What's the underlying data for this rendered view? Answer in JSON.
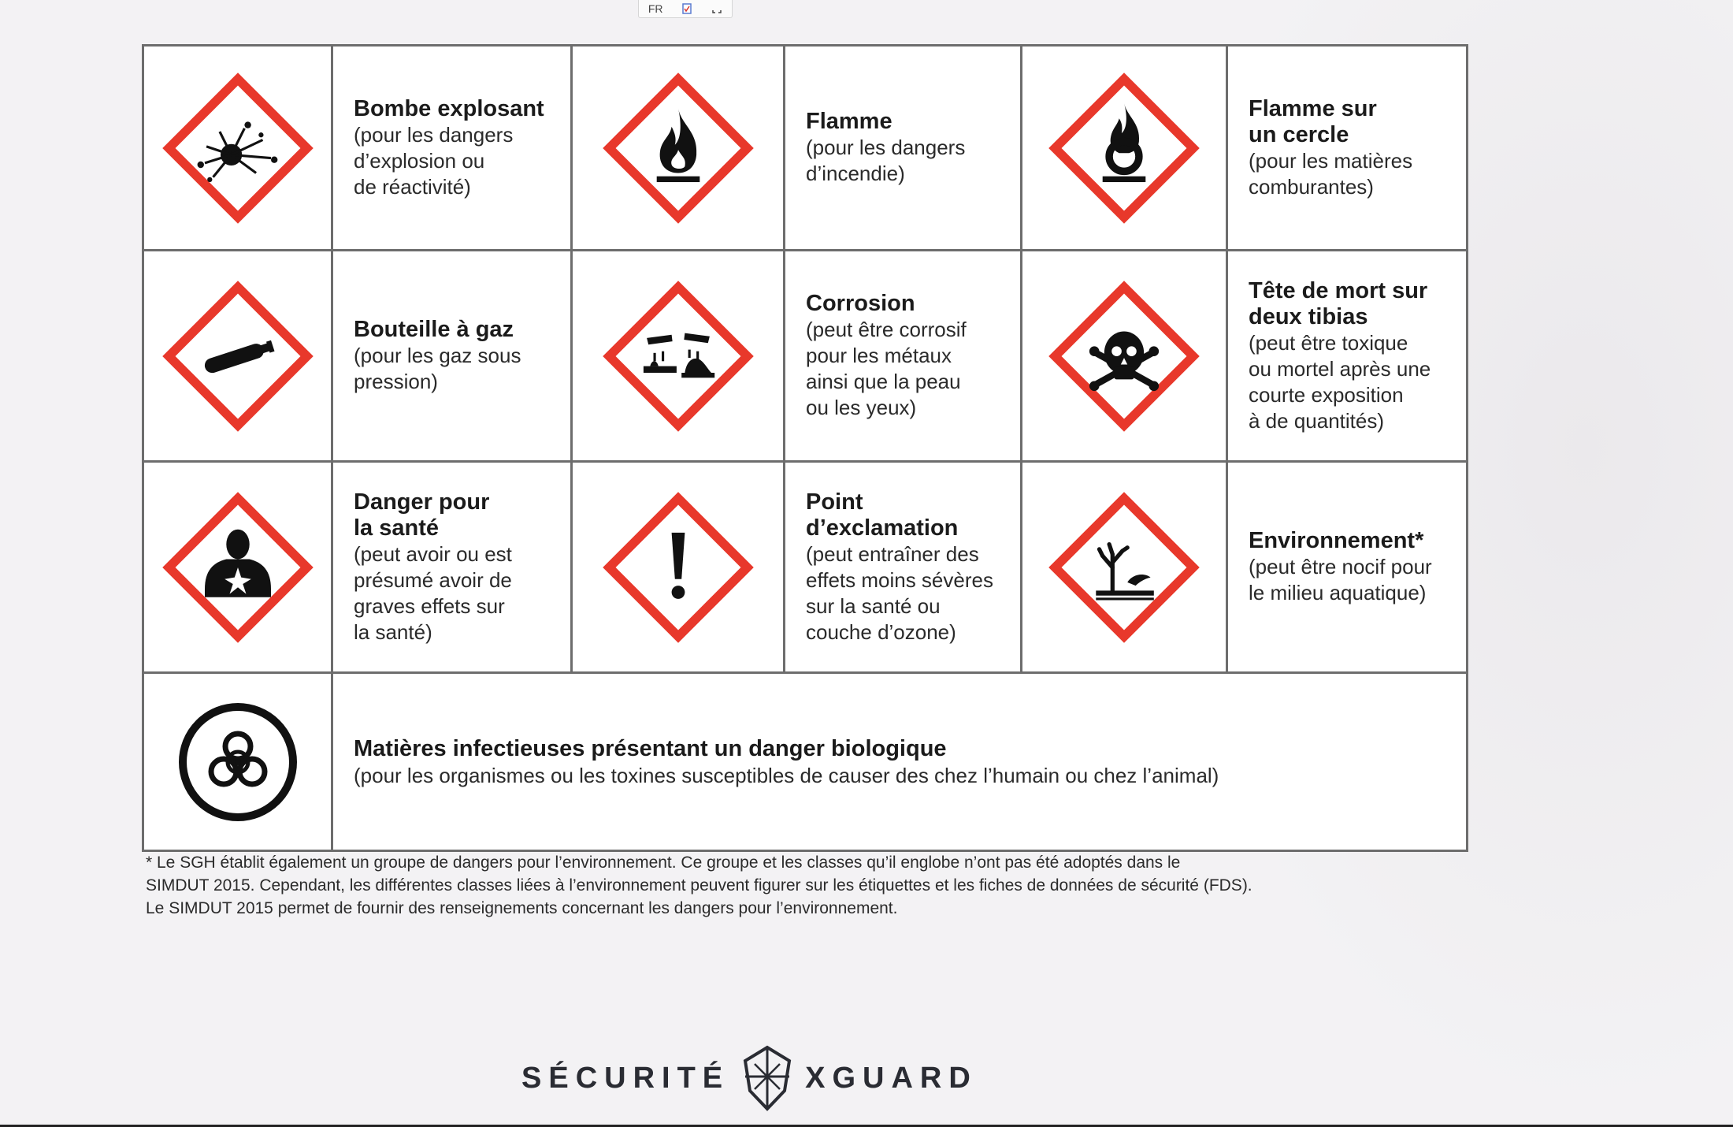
{
  "toolbar": {
    "lang": "FR"
  },
  "rows": [
    [
      {
        "icon": "exploding-bomb-icon",
        "title": "Bombe explosant",
        "desc": "(pour les dangers\nd’explosion ou\nde réactivité)"
      },
      {
        "icon": "flame-icon",
        "title": "Flamme",
        "desc": "(pour les dangers\nd’incendie)"
      },
      {
        "icon": "flame-over-circle-icon",
        "title": "Flamme sur\nun cercle",
        "desc": "(pour les matières\ncomburantes)"
      }
    ],
    [
      {
        "icon": "gas-cylinder-icon",
        "title": "Bouteille à gaz",
        "desc": "(pour les gaz sous\npression)"
      },
      {
        "icon": "corrosion-icon",
        "title": "Corrosion",
        "desc": "(peut être corrosif\npour les métaux\nainsi que la peau\nou les yeux)"
      },
      {
        "icon": "skull-crossbones-icon",
        "title": "Tête de mort sur\ndeux tibias",
        "desc": "(peut être toxique\nou mortel après une\ncourte exposition\nà de quantités)"
      }
    ],
    [
      {
        "icon": "health-hazard-icon",
        "title": "Danger pour\nla santé",
        "desc": "(peut avoir ou est\nprésumé avoir de\ngraves effets sur\nla santé)"
      },
      {
        "icon": "exclamation-mark-icon",
        "title": "Point\nd’exclamation",
        "desc": "(peut entraîner des\neffets moins sévères\nsur la santé ou\ncouche d’ozone)"
      },
      {
        "icon": "environment-icon",
        "title": "Environnement*",
        "desc": "(peut être nocif pour\nle milieu aquatique)"
      }
    ]
  ],
  "biohazard": {
    "icon": "biohazard-icon",
    "title": "Matières infectieuses présentant un danger biologique",
    "desc": "(pour les organismes ou les toxines susceptibles de causer des chez l’humain ou chez l’animal)"
  },
  "footnote": "* Le SGH établit également un groupe de dangers pour l’environnement. Ce groupe et les classes qu’il englobe n’ont pas été adoptés dans le\n   SIMDUT 2015. Cependant, les différentes classes liées à l’environnement peuvent figurer sur les étiquettes et les fiches de données de sécurité (FDS).\n   Le SIMDUT 2015 permet de fournir des renseignements concernant les dangers pour l’environnement.",
  "brand": {
    "left": "SÉCURITÉ",
    "right": "XGUARD",
    "icon": "shield-logo-icon"
  },
  "colors": {
    "diamond_border": "#e8382b",
    "symbol": "#111111"
  }
}
